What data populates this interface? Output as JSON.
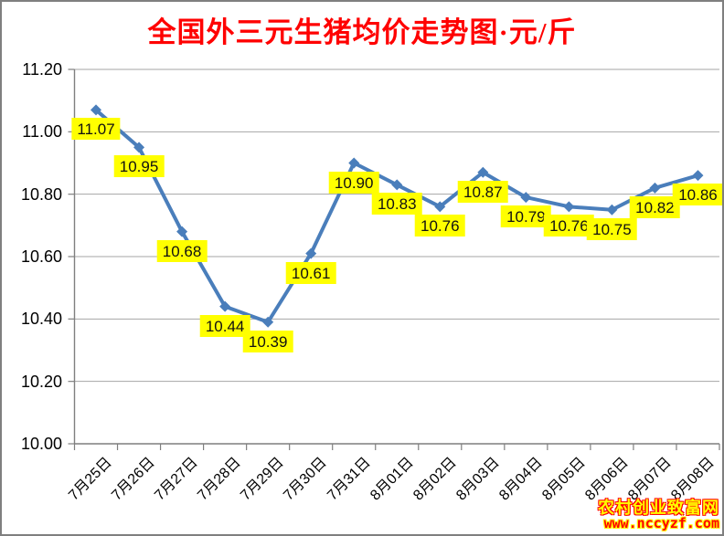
{
  "title": "全国外三元生猪均价走势图·元/斤",
  "title_color": "#ff0000",
  "watermark": {
    "line1": "农村创业致富网",
    "line1_color": "#ffff00",
    "line2": "www.nccyzf.com",
    "line2_color": "#ff0000"
  },
  "chart_data": {
    "type": "line",
    "title": "全国外三元生猪均价走势图·元/斤",
    "categories": [
      "7月25日",
      "7月26日",
      "7月27日",
      "7月28日",
      "7月29日",
      "7月30日",
      "7月31日",
      "8月01日",
      "8月02日",
      "8月03日",
      "8月04日",
      "8月05日",
      "8月06日",
      "8月07日",
      "8月08日"
    ],
    "values": [
      11.07,
      10.95,
      10.68,
      10.44,
      10.39,
      10.61,
      10.9,
      10.83,
      10.76,
      10.87,
      10.79,
      10.76,
      10.75,
      10.82,
      10.86
    ],
    "data_labels": [
      "11.07",
      "10.95",
      "10.68",
      "10.44",
      "10.39",
      "10.61",
      "10.90",
      "10.83",
      "10.76",
      "10.87",
      "10.79",
      "10.76",
      "10.75",
      "10.82",
      "10.86"
    ],
    "xlabel": "",
    "ylabel": "",
    "ylim": [
      10.0,
      11.2
    ],
    "ytick_step": 0.2,
    "ytick_labels": [
      "10.00",
      "10.20",
      "10.40",
      "10.60",
      "10.80",
      "11.00",
      "11.20"
    ],
    "grid": true,
    "legend": "none",
    "marker": "diamond",
    "series_color": "#4a7ebb",
    "grid_color": "#a6a6a6",
    "axis_color": "#7f7f7f",
    "label_bg": "#ffff00"
  }
}
